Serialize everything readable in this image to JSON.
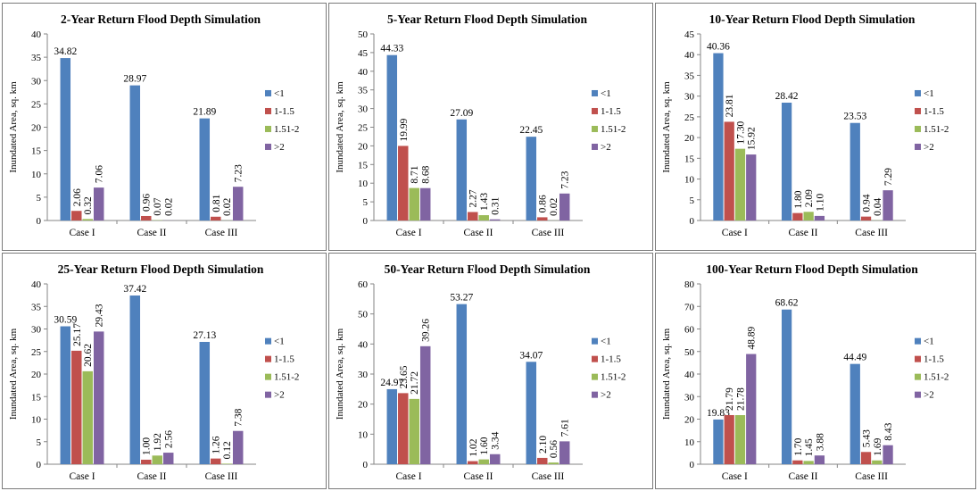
{
  "colors": {
    "lt1": "#4f81bd",
    "r1_1.5": "#c0504d",
    "r1.51_2": "#9bbb59",
    "gt2": "#8064a2"
  },
  "chart_data": [
    {
      "type": "bar",
      "title": "2-Year Return Flood Depth Simulation",
      "ylabel": "Inundated Area, sq. km",
      "categories": [
        "Case I",
        "Case II",
        "Case III"
      ],
      "ylim": [
        0,
        40
      ],
      "yticks": [
        0,
        5,
        10,
        15,
        20,
        25,
        30,
        35,
        40
      ],
      "legend_position": "right",
      "series": [
        {
          "name": "<1",
          "color": "#4f81bd",
          "values": [
            34.82,
            28.97,
            21.89
          ],
          "labels": [
            "34.82",
            "28.97",
            "21.89"
          ]
        },
        {
          "name": "1-1.5",
          "color": "#c0504d",
          "values": [
            2.06,
            0.96,
            0.81
          ],
          "labels": [
            "2.06",
            "0.96",
            "0.81"
          ]
        },
        {
          "name": "1.51-2",
          "color": "#9bbb59",
          "values": [
            0.32,
            0.07,
            0.02
          ],
          "labels": [
            "0.32",
            "0.07",
            "0.02"
          ]
        },
        {
          "name": ">2",
          "color": "#8064a2",
          "values": [
            7.06,
            0.02,
            7.23
          ],
          "labels": [
            "7.06",
            "0.02",
            "7.23"
          ]
        }
      ]
    },
    {
      "type": "bar",
      "title": "5-Year Return Flood Depth Simulation",
      "ylabel": "Inundated Area, sq. km",
      "categories": [
        "Case I",
        "Case II",
        "Case III"
      ],
      "ylim": [
        0,
        50
      ],
      "yticks": [
        0,
        5,
        10,
        15,
        20,
        25,
        30,
        35,
        40,
        45,
        50
      ],
      "legend_position": "right",
      "series": [
        {
          "name": "<1",
          "color": "#4f81bd",
          "values": [
            44.33,
            27.09,
            22.45
          ],
          "labels": [
            "44.33",
            "27.09",
            "22.45"
          ]
        },
        {
          "name": "1-1.5",
          "color": "#c0504d",
          "values": [
            19.99,
            2.27,
            0.86
          ],
          "labels": [
            "19.99",
            "2.27",
            "0.86"
          ]
        },
        {
          "name": "1.51-2",
          "color": "#9bbb59",
          "values": [
            8.71,
            1.43,
            0.02
          ],
          "labels": [
            "8.71",
            "1.43",
            "0.02"
          ]
        },
        {
          "name": ">2",
          "color": "#8064a2",
          "values": [
            8.68,
            0.31,
            7.23
          ],
          "labels": [
            "8.68",
            "0.31",
            "7.23"
          ]
        }
      ]
    },
    {
      "type": "bar",
      "title": "10-Year Return Flood Depth Simulation",
      "ylabel": "Inundated Area, sq. km",
      "categories": [
        "Case I",
        "Case II",
        "Case III"
      ],
      "ylim": [
        0,
        45
      ],
      "yticks": [
        0,
        5,
        10,
        15,
        20,
        25,
        30,
        35,
        40,
        45
      ],
      "legend_position": "right",
      "series": [
        {
          "name": "<1",
          "color": "#4f81bd",
          "values": [
            40.36,
            28.42,
            23.53
          ],
          "labels": [
            "40.36",
            "28.42",
            "23.53"
          ]
        },
        {
          "name": "1-1.5",
          "color": "#c0504d",
          "values": [
            23.81,
            1.8,
            0.94
          ],
          "labels": [
            "23.81",
            "1.80",
            "0.94"
          ]
        },
        {
          "name": "1.51-2",
          "color": "#9bbb59",
          "values": [
            17.3,
            2.09,
            0.04
          ],
          "labels": [
            "17.30",
            "2.09",
            "0.04"
          ]
        },
        {
          "name": ">2",
          "color": "#8064a2",
          "values": [
            15.92,
            1.1,
            7.29
          ],
          "labels": [
            "15.92",
            "1.10",
            "7.29"
          ]
        }
      ]
    },
    {
      "type": "bar",
      "title": "25-Year Return Flood Depth Simulation",
      "ylabel": "Inundated Area, sq. km",
      "categories": [
        "Case I",
        "Case II",
        "Case III"
      ],
      "ylim": [
        0,
        40
      ],
      "yticks": [
        0,
        5,
        10,
        15,
        20,
        25,
        30,
        35,
        40
      ],
      "legend_position": "right",
      "series": [
        {
          "name": "<1",
          "color": "#4f81bd",
          "values": [
            30.59,
            37.42,
            27.13
          ],
          "labels": [
            "30.59",
            "37.42",
            "27.13"
          ]
        },
        {
          "name": "1-1.5",
          "color": "#c0504d",
          "values": [
            25.17,
            1.0,
            1.26
          ],
          "labels": [
            "25.17",
            "1.00",
            "1.26"
          ]
        },
        {
          "name": "1.51-2",
          "color": "#9bbb59",
          "values": [
            20.62,
            1.92,
            0.12
          ],
          "labels": [
            "20.62",
            "1.92",
            "0.12"
          ]
        },
        {
          "name": ">2",
          "color": "#8064a2",
          "values": [
            29.43,
            2.56,
            7.38
          ],
          "labels": [
            "29.43",
            "2.56",
            "7.38"
          ]
        }
      ]
    },
    {
      "type": "bar",
      "title": "50-Year Return Flood Depth Simulation",
      "ylabel": "Inundated Area, sq. km",
      "categories": [
        "Case I",
        "Case II",
        "Case III"
      ],
      "ylim": [
        0,
        60
      ],
      "yticks": [
        0,
        10,
        20,
        30,
        40,
        50,
        60
      ],
      "legend_position": "right",
      "series": [
        {
          "name": "<1",
          "color": "#4f81bd",
          "values": [
            24.97,
            53.27,
            34.07
          ],
          "labels": [
            "24.97",
            "53.27",
            "34.07"
          ]
        },
        {
          "name": "1-1.5",
          "color": "#c0504d",
          "values": [
            23.65,
            1.02,
            2.1
          ],
          "labels": [
            "23.65",
            "1.02",
            "2.10"
          ]
        },
        {
          "name": "1.51-2",
          "color": "#9bbb59",
          "values": [
            21.72,
            1.6,
            0.56
          ],
          "labels": [
            "21.72",
            "1.60",
            "0.56"
          ]
        },
        {
          "name": ">2",
          "color": "#8064a2",
          "values": [
            39.26,
            3.34,
            7.61
          ],
          "labels": [
            "39.26",
            "3.34",
            "7.61"
          ]
        }
      ]
    },
    {
      "type": "bar",
      "title": "100-Year Return Flood Depth Simulation",
      "ylabel": "Inundated Area, sq. km",
      "categories": [
        "Case I",
        "Case II",
        "Case III"
      ],
      "ylim": [
        0,
        80
      ],
      "yticks": [
        0,
        10,
        20,
        30,
        40,
        50,
        60,
        70,
        80
      ],
      "legend_position": "right",
      "series": [
        {
          "name": "<1",
          "color": "#4f81bd",
          "values": [
            19.83,
            68.62,
            44.49
          ],
          "labels": [
            "19.83",
            "68.62",
            "44.49"
          ]
        },
        {
          "name": "1-1.5",
          "color": "#c0504d",
          "values": [
            21.79,
            1.7,
            5.43
          ],
          "labels": [
            "21.79",
            "1.70",
            "5.43"
          ]
        },
        {
          "name": "1.51-2",
          "color": "#9bbb59",
          "values": [
            21.78,
            1.45,
            1.69
          ],
          "labels": [
            "21.78",
            "1.45",
            "1.69"
          ]
        },
        {
          "name": ">2",
          "color": "#8064a2",
          "values": [
            48.89,
            3.88,
            8.43
          ],
          "labels": [
            "48.89",
            "3.88",
            "8.43"
          ]
        }
      ]
    }
  ]
}
